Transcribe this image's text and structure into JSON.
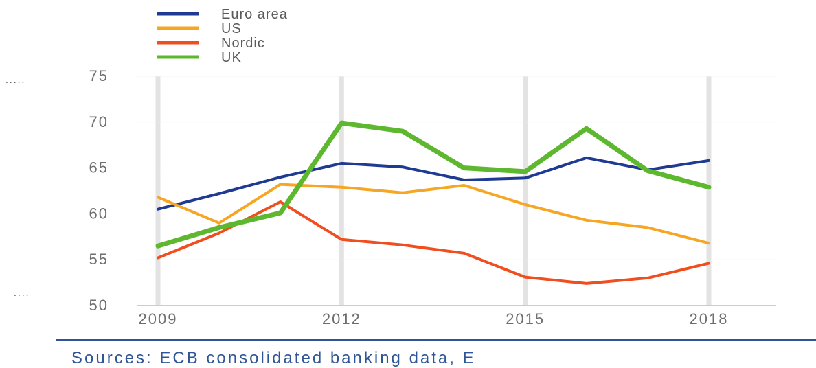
{
  "chart_data": {
    "type": "line",
    "x": [
      2009,
      2010,
      2011,
      2012,
      2013,
      2014,
      2015,
      2016,
      2017,
      2018
    ],
    "xticks": [
      "2009",
      "2012",
      "2015",
      "2018"
    ],
    "ylim": [
      50,
      75
    ],
    "yticks": [
      "50",
      "55",
      "60",
      "65",
      "70",
      "75"
    ],
    "grid": "vertical-at-ticks",
    "legend_position": "top-left",
    "series": [
      {
        "name": "Euro area",
        "color": "#1f3a93",
        "width": 4,
        "values": [
          60.5,
          62.2,
          64.0,
          65.5,
          65.1,
          63.7,
          63.9,
          66.1,
          64.8,
          65.8
        ]
      },
      {
        "name": "US",
        "color": "#f5a623",
        "width": 4,
        "values": [
          61.8,
          59.0,
          63.2,
          62.9,
          62.3,
          63.1,
          61.0,
          59.3,
          58.5,
          56.8
        ]
      },
      {
        "name": "Nordic",
        "color": "#f04e1f",
        "width": 4,
        "values": [
          55.2,
          57.9,
          61.3,
          57.2,
          56.6,
          55.7,
          53.1,
          52.4,
          53.0,
          54.6
        ]
      },
      {
        "name": "UK",
        "color": "#5db82f",
        "width": 7,
        "values": [
          56.5,
          58.5,
          60.1,
          69.9,
          69.0,
          65.0,
          64.6,
          69.3,
          64.7,
          62.9
        ]
      }
    ]
  },
  "source_text": "Sources: ECB consolidated banking data, E"
}
